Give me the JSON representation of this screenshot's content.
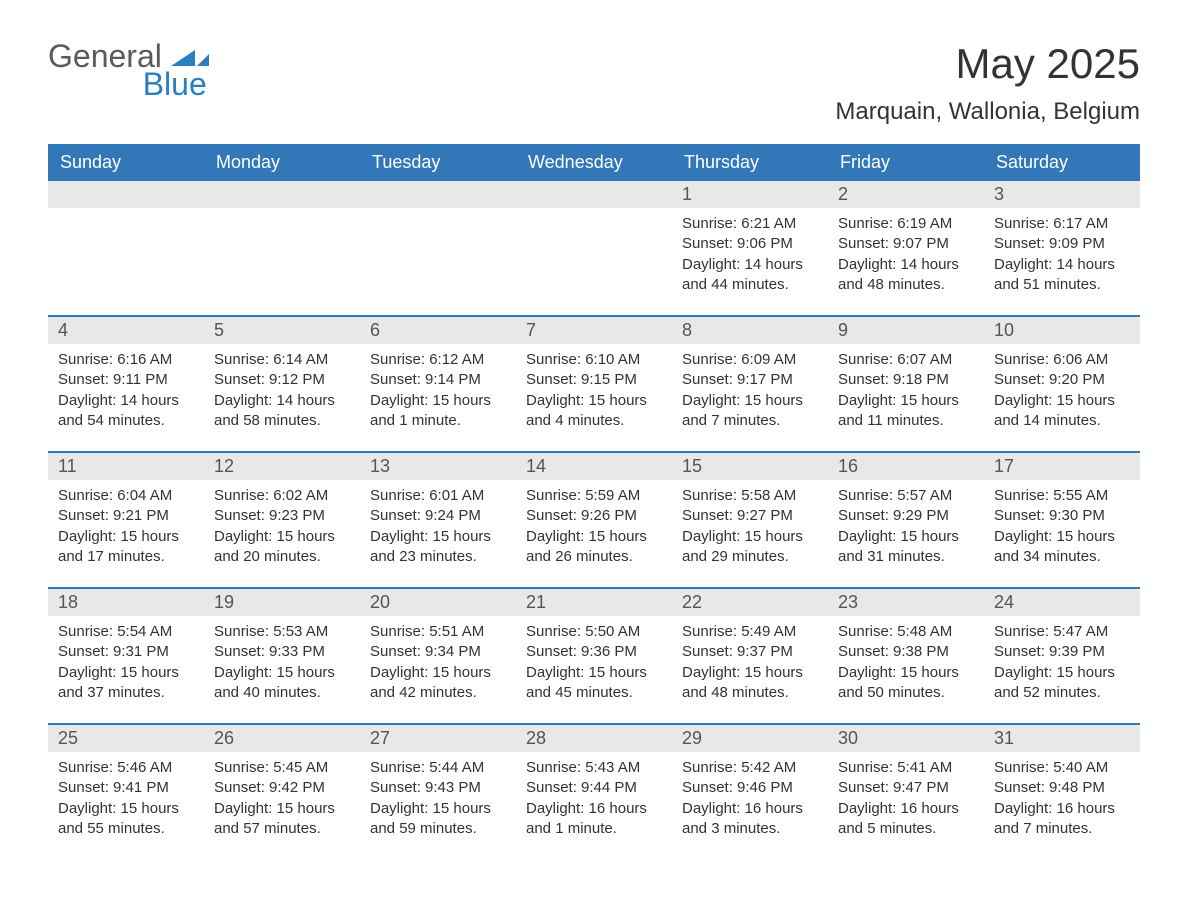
{
  "logo": {
    "word1": "General",
    "word2": "Blue"
  },
  "title": "May 2025",
  "location": "Marquain, Wallonia, Belgium",
  "colors": {
    "header_bg": "#3278b8",
    "header_text": "#ffffff",
    "daynum_bg": "#e8e8e8",
    "daynum_text": "#555555",
    "body_text": "#333333",
    "logo_gray": "#5a5a5a",
    "logo_blue": "#2a7fbf",
    "page_bg": "#ffffff"
  },
  "day_names": [
    "Sunday",
    "Monday",
    "Tuesday",
    "Wednesday",
    "Thursday",
    "Friday",
    "Saturday"
  ],
  "weeks": [
    [
      {
        "n": "",
        "sunrise": "",
        "sunset": "",
        "daylight": ""
      },
      {
        "n": "",
        "sunrise": "",
        "sunset": "",
        "daylight": ""
      },
      {
        "n": "",
        "sunrise": "",
        "sunset": "",
        "daylight": ""
      },
      {
        "n": "",
        "sunrise": "",
        "sunset": "",
        "daylight": ""
      },
      {
        "n": "1",
        "sunrise": "Sunrise: 6:21 AM",
        "sunset": "Sunset: 9:06 PM",
        "daylight": "Daylight: 14 hours and 44 minutes."
      },
      {
        "n": "2",
        "sunrise": "Sunrise: 6:19 AM",
        "sunset": "Sunset: 9:07 PM",
        "daylight": "Daylight: 14 hours and 48 minutes."
      },
      {
        "n": "3",
        "sunrise": "Sunrise: 6:17 AM",
        "sunset": "Sunset: 9:09 PM",
        "daylight": "Daylight: 14 hours and 51 minutes."
      }
    ],
    [
      {
        "n": "4",
        "sunrise": "Sunrise: 6:16 AM",
        "sunset": "Sunset: 9:11 PM",
        "daylight": "Daylight: 14 hours and 54 minutes."
      },
      {
        "n": "5",
        "sunrise": "Sunrise: 6:14 AM",
        "sunset": "Sunset: 9:12 PM",
        "daylight": "Daylight: 14 hours and 58 minutes."
      },
      {
        "n": "6",
        "sunrise": "Sunrise: 6:12 AM",
        "sunset": "Sunset: 9:14 PM",
        "daylight": "Daylight: 15 hours and 1 minute."
      },
      {
        "n": "7",
        "sunrise": "Sunrise: 6:10 AM",
        "sunset": "Sunset: 9:15 PM",
        "daylight": "Daylight: 15 hours and 4 minutes."
      },
      {
        "n": "8",
        "sunrise": "Sunrise: 6:09 AM",
        "sunset": "Sunset: 9:17 PM",
        "daylight": "Daylight: 15 hours and 7 minutes."
      },
      {
        "n": "9",
        "sunrise": "Sunrise: 6:07 AM",
        "sunset": "Sunset: 9:18 PM",
        "daylight": "Daylight: 15 hours and 11 minutes."
      },
      {
        "n": "10",
        "sunrise": "Sunrise: 6:06 AM",
        "sunset": "Sunset: 9:20 PM",
        "daylight": "Daylight: 15 hours and 14 minutes."
      }
    ],
    [
      {
        "n": "11",
        "sunrise": "Sunrise: 6:04 AM",
        "sunset": "Sunset: 9:21 PM",
        "daylight": "Daylight: 15 hours and 17 minutes."
      },
      {
        "n": "12",
        "sunrise": "Sunrise: 6:02 AM",
        "sunset": "Sunset: 9:23 PM",
        "daylight": "Daylight: 15 hours and 20 minutes."
      },
      {
        "n": "13",
        "sunrise": "Sunrise: 6:01 AM",
        "sunset": "Sunset: 9:24 PM",
        "daylight": "Daylight: 15 hours and 23 minutes."
      },
      {
        "n": "14",
        "sunrise": "Sunrise: 5:59 AM",
        "sunset": "Sunset: 9:26 PM",
        "daylight": "Daylight: 15 hours and 26 minutes."
      },
      {
        "n": "15",
        "sunrise": "Sunrise: 5:58 AM",
        "sunset": "Sunset: 9:27 PM",
        "daylight": "Daylight: 15 hours and 29 minutes."
      },
      {
        "n": "16",
        "sunrise": "Sunrise: 5:57 AM",
        "sunset": "Sunset: 9:29 PM",
        "daylight": "Daylight: 15 hours and 31 minutes."
      },
      {
        "n": "17",
        "sunrise": "Sunrise: 5:55 AM",
        "sunset": "Sunset: 9:30 PM",
        "daylight": "Daylight: 15 hours and 34 minutes."
      }
    ],
    [
      {
        "n": "18",
        "sunrise": "Sunrise: 5:54 AM",
        "sunset": "Sunset: 9:31 PM",
        "daylight": "Daylight: 15 hours and 37 minutes."
      },
      {
        "n": "19",
        "sunrise": "Sunrise: 5:53 AM",
        "sunset": "Sunset: 9:33 PM",
        "daylight": "Daylight: 15 hours and 40 minutes."
      },
      {
        "n": "20",
        "sunrise": "Sunrise: 5:51 AM",
        "sunset": "Sunset: 9:34 PM",
        "daylight": "Daylight: 15 hours and 42 minutes."
      },
      {
        "n": "21",
        "sunrise": "Sunrise: 5:50 AM",
        "sunset": "Sunset: 9:36 PM",
        "daylight": "Daylight: 15 hours and 45 minutes."
      },
      {
        "n": "22",
        "sunrise": "Sunrise: 5:49 AM",
        "sunset": "Sunset: 9:37 PM",
        "daylight": "Daylight: 15 hours and 48 minutes."
      },
      {
        "n": "23",
        "sunrise": "Sunrise: 5:48 AM",
        "sunset": "Sunset: 9:38 PM",
        "daylight": "Daylight: 15 hours and 50 minutes."
      },
      {
        "n": "24",
        "sunrise": "Sunrise: 5:47 AM",
        "sunset": "Sunset: 9:39 PM",
        "daylight": "Daylight: 15 hours and 52 minutes."
      }
    ],
    [
      {
        "n": "25",
        "sunrise": "Sunrise: 5:46 AM",
        "sunset": "Sunset: 9:41 PM",
        "daylight": "Daylight: 15 hours and 55 minutes."
      },
      {
        "n": "26",
        "sunrise": "Sunrise: 5:45 AM",
        "sunset": "Sunset: 9:42 PM",
        "daylight": "Daylight: 15 hours and 57 minutes."
      },
      {
        "n": "27",
        "sunrise": "Sunrise: 5:44 AM",
        "sunset": "Sunset: 9:43 PM",
        "daylight": "Daylight: 15 hours and 59 minutes."
      },
      {
        "n": "28",
        "sunrise": "Sunrise: 5:43 AM",
        "sunset": "Sunset: 9:44 PM",
        "daylight": "Daylight: 16 hours and 1 minute."
      },
      {
        "n": "29",
        "sunrise": "Sunrise: 5:42 AM",
        "sunset": "Sunset: 9:46 PM",
        "daylight": "Daylight: 16 hours and 3 minutes."
      },
      {
        "n": "30",
        "sunrise": "Sunrise: 5:41 AM",
        "sunset": "Sunset: 9:47 PM",
        "daylight": "Daylight: 16 hours and 5 minutes."
      },
      {
        "n": "31",
        "sunrise": "Sunrise: 5:40 AM",
        "sunset": "Sunset: 9:48 PM",
        "daylight": "Daylight: 16 hours and 7 minutes."
      }
    ]
  ]
}
